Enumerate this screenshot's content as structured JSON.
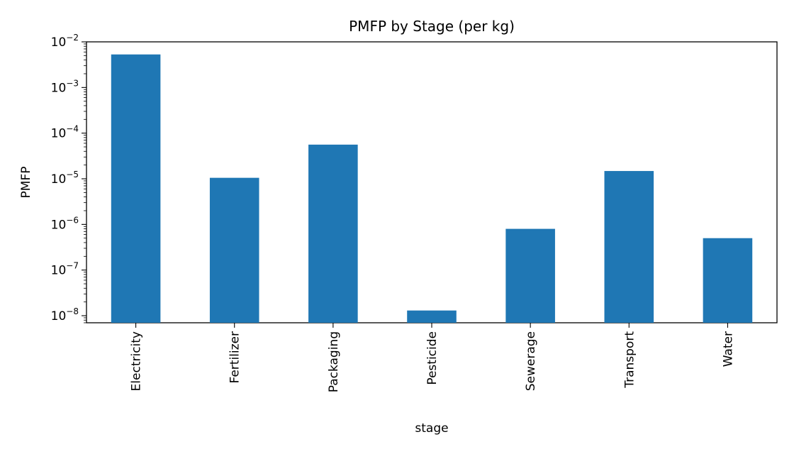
{
  "chart_data": {
    "type": "bar",
    "title": "PMFP by Stage (per kg)",
    "xlabel": "stage",
    "ylabel": "PMFP",
    "yscale": "log",
    "ylim": [
      7e-09,
      0.01
    ],
    "yticks": [
      1e-08,
      1e-07,
      1e-06,
      1e-05,
      0.0001,
      0.001,
      0.01
    ],
    "categories": [
      "Electricity",
      "Fertilizer",
      "Packaging",
      "Pesticide",
      "Sewerage",
      "Transport",
      "Water"
    ],
    "values": [
      0.0053,
      1.05e-05,
      5.6e-05,
      1.3e-08,
      8e-07,
      1.48e-05,
      5e-07
    ],
    "bar_color": "#1f77b4",
    "grid": false,
    "legend": "none"
  }
}
